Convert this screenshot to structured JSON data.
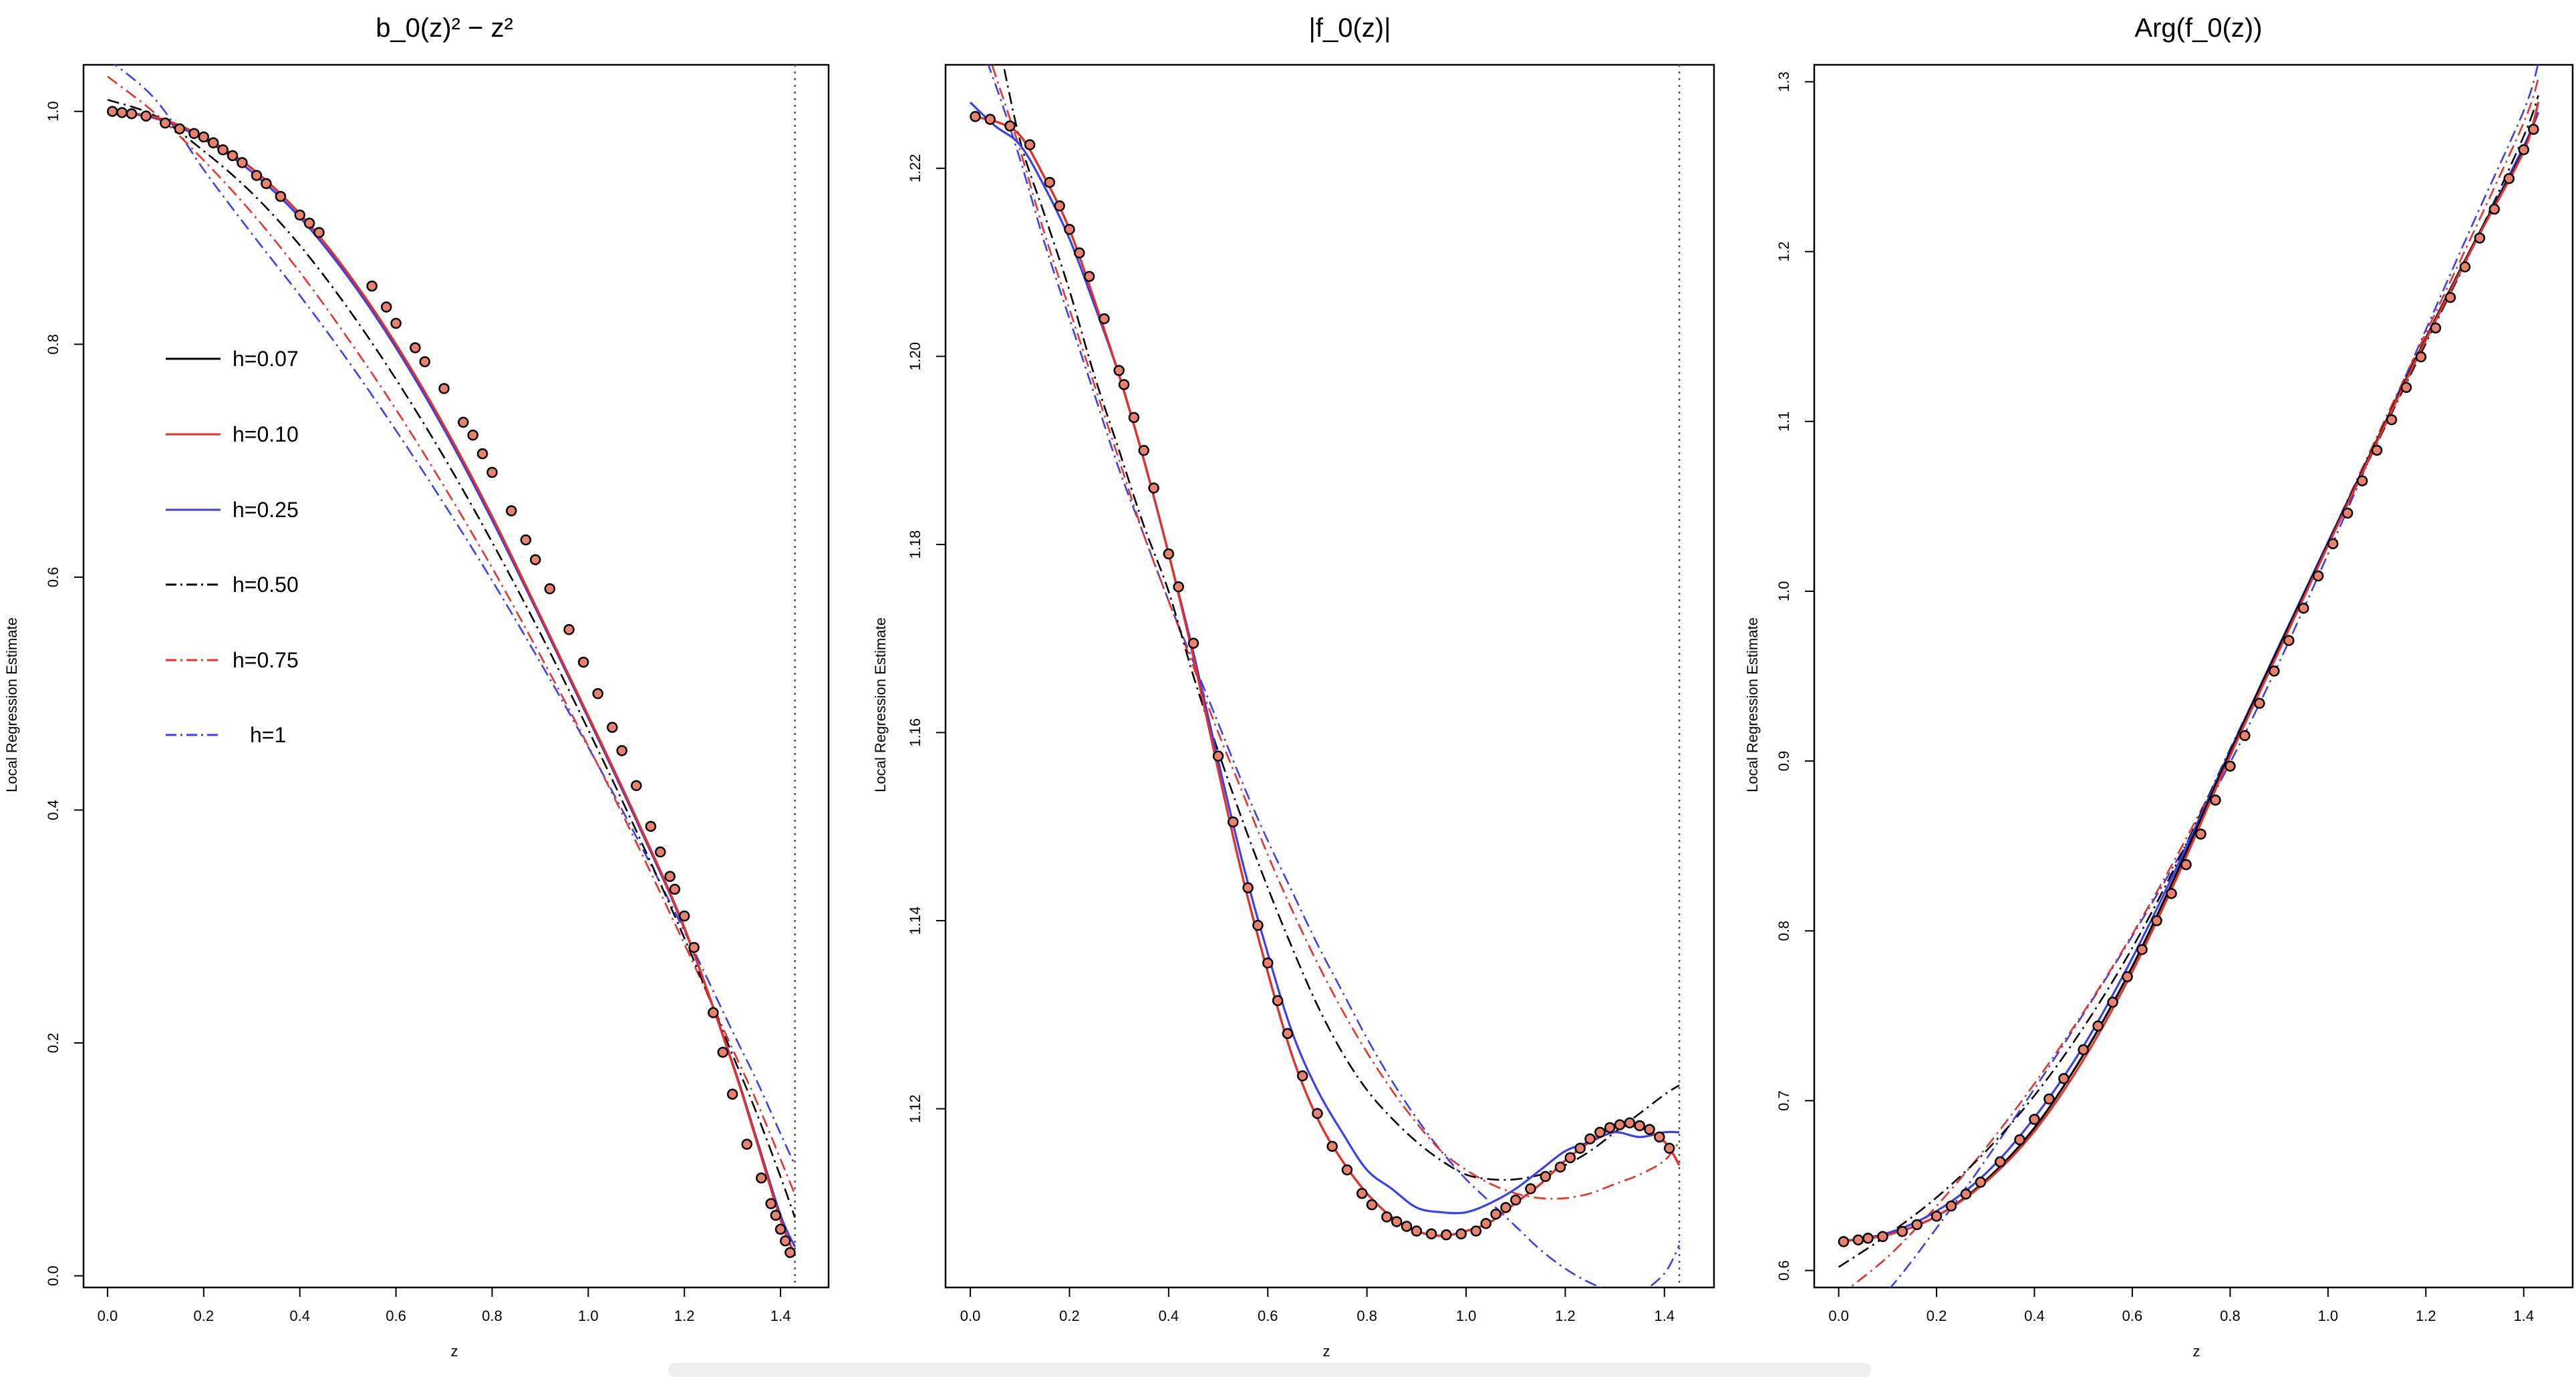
{
  "figure": {
    "y_axis_label": "Local Regression Estimate",
    "x_axis_label": "z"
  },
  "legend": [
    {
      "label": "h=0.07",
      "color": "#000000",
      "dash": "solid"
    },
    {
      "label": "h=0.10",
      "color": "#e8312a",
      "dash": "solid"
    },
    {
      "label": "h=0.25",
      "color": "#3b3ff0",
      "dash": "solid"
    },
    {
      "label": "h=0.50",
      "color": "#000000",
      "dash": "dashdot"
    },
    {
      "label": "h=0.75",
      "color": "#e8312a",
      "dash": "dashdot"
    },
    {
      "label": "h=1",
      "color": "#3b3ff0",
      "dash": "dashdot"
    }
  ],
  "chart_data": [
    {
      "type": "line",
      "title": "b_0(z)² − z²",
      "xlabel": "z",
      "ylabel": "Local Regression Estimate",
      "xlim": [
        -0.05,
        1.5
      ],
      "ylim": [
        -0.01,
        1.04
      ],
      "x_ticks": [
        0.0,
        0.2,
        0.4,
        0.6,
        0.8,
        1.0,
        1.2,
        1.4
      ],
      "x_tick_labels": [
        "0.0",
        "0.2",
        "0.4",
        "0.6",
        "0.8",
        "1.0",
        "1.2",
        "1.4"
      ],
      "y_ticks": [
        0.0,
        0.2,
        0.4,
        0.6,
        0.8,
        1.0
      ],
      "y_tick_labels": [
        "0.0",
        "0.2",
        "0.4",
        "0.6",
        "0.8",
        "1.0"
      ],
      "vline": 1.43,
      "grid": false,
      "legend_position": "left",
      "x": [
        0.0,
        0.1,
        0.2,
        0.3,
        0.4,
        0.5,
        0.6,
        0.7,
        0.8,
        0.9,
        1.0,
        1.1,
        1.2,
        1.3,
        1.35,
        1.4,
        1.43
      ],
      "series": [
        {
          "name": "h=0.07",
          "values": [
            1.0,
            0.995,
            0.978,
            0.951,
            0.912,
            0.861,
            0.8,
            0.73,
            0.652,
            0.567,
            0.481,
            0.393,
            0.299,
            0.182,
            0.116,
            0.048,
            0.018
          ]
        },
        {
          "name": "h=0.10",
          "values": [
            1.0,
            0.995,
            0.978,
            0.951,
            0.912,
            0.861,
            0.8,
            0.73,
            0.652,
            0.567,
            0.481,
            0.393,
            0.299,
            0.182,
            0.116,
            0.048,
            0.018
          ]
        },
        {
          "name": "h=0.25",
          "values": [
            1.0,
            0.994,
            0.976,
            0.948,
            0.909,
            0.858,
            0.797,
            0.727,
            0.649,
            0.565,
            0.479,
            0.391,
            0.298,
            0.183,
            0.118,
            0.052,
            0.025
          ]
        },
        {
          "name": "h=0.50",
          "values": [
            1.01,
            0.996,
            0.966,
            0.93,
            0.885,
            0.831,
            0.77,
            0.703,
            0.63,
            0.552,
            0.469,
            0.382,
            0.29,
            0.19,
            0.14,
            0.085,
            0.05
          ]
        },
        {
          "name": "h=0.75",
          "values": [
            1.03,
            0.998,
            0.958,
            0.913,
            0.862,
            0.805,
            0.744,
            0.678,
            0.608,
            0.533,
            0.455,
            0.372,
            0.285,
            0.195,
            0.15,
            0.1,
            0.07
          ]
        },
        {
          "name": "h=1",
          "values": [
            1.045,
            1.01,
            0.95,
            0.895,
            0.842,
            0.786,
            0.726,
            0.663,
            0.597,
            0.527,
            0.454,
            0.377,
            0.296,
            0.21,
            0.168,
            0.122,
            0.095
          ]
        }
      ],
      "points": {
        "x": [
          0.01,
          0.03,
          0.05,
          0.08,
          0.12,
          0.15,
          0.18,
          0.2,
          0.22,
          0.24,
          0.26,
          0.28,
          0.31,
          0.33,
          0.36,
          0.4,
          0.42,
          0.44,
          0.55,
          0.58,
          0.6,
          0.64,
          0.66,
          0.7,
          0.74,
          0.76,
          0.78,
          0.8,
          0.84,
          0.87,
          0.89,
          0.92,
          0.96,
          0.99,
          1.02,
          1.05,
          1.07,
          1.1,
          1.13,
          1.15,
          1.17,
          1.18,
          1.2,
          1.22,
          1.26,
          1.28,
          1.3,
          1.33,
          1.36,
          1.38,
          1.39,
          1.4,
          1.41,
          1.42
        ],
        "y": [
          1.0,
          0.999,
          0.998,
          0.996,
          0.99,
          0.985,
          0.981,
          0.978,
          0.973,
          0.967,
          0.962,
          0.956,
          0.945,
          0.938,
          0.927,
          0.911,
          0.904,
          0.896,
          0.85,
          0.832,
          0.818,
          0.797,
          0.785,
          0.762,
          0.733,
          0.722,
          0.706,
          0.69,
          0.657,
          0.632,
          0.615,
          0.59,
          0.555,
          0.527,
          0.5,
          0.471,
          0.451,
          0.421,
          0.386,
          0.364,
          0.343,
          0.332,
          0.309,
          0.282,
          0.226,
          0.192,
          0.156,
          0.113,
          0.084,
          0.062,
          0.052,
          0.04,
          0.03,
          0.02
        ]
      }
    },
    {
      "type": "line",
      "title": "|f_0(z)|",
      "xlabel": "z",
      "ylabel": "Local Regression Estimate",
      "xlim": [
        -0.05,
        1.5
      ],
      "ylim": [
        1.101,
        1.231
      ],
      "x_ticks": [
        0.0,
        0.2,
        0.4,
        0.6,
        0.8,
        1.0,
        1.2,
        1.4
      ],
      "x_tick_labels": [
        "0.0",
        "0.2",
        "0.4",
        "0.6",
        "0.8",
        "1.0",
        "1.2",
        "1.4"
      ],
      "y_ticks": [
        1.12,
        1.14,
        1.16,
        1.18,
        1.2,
        1.22
      ],
      "y_tick_labels": [
        "1.12",
        "1.14",
        "1.16",
        "1.18",
        "1.20",
        "1.22"
      ],
      "vline": 1.43,
      "grid": false,
      "x": [
        0.0,
        0.05,
        0.1,
        0.15,
        0.2,
        0.25,
        0.3,
        0.35,
        0.4,
        0.45,
        0.5,
        0.55,
        0.6,
        0.65,
        0.7,
        0.75,
        0.8,
        0.85,
        0.9,
        0.95,
        1.0,
        1.05,
        1.1,
        1.15,
        1.2,
        1.25,
        1.3,
        1.35,
        1.4,
        1.43
      ],
      "series": [
        {
          "name": "h=0.07",
          "values": [
            1.2255,
            1.225,
            1.2235,
            1.219,
            1.2135,
            1.206,
            1.198,
            1.189,
            1.179,
            1.168,
            1.156,
            1.1445,
            1.1345,
            1.1255,
            1.119,
            1.1145,
            1.111,
            1.1085,
            1.107,
            1.1065,
            1.107,
            1.108,
            1.11,
            1.112,
            1.1145,
            1.1165,
            1.118,
            1.118,
            1.1165,
            1.114
          ]
        },
        {
          "name": "h=0.10",
          "values": [
            1.2255,
            1.225,
            1.2235,
            1.219,
            1.2135,
            1.206,
            1.198,
            1.189,
            1.179,
            1.168,
            1.156,
            1.1445,
            1.1345,
            1.1255,
            1.119,
            1.1145,
            1.111,
            1.1085,
            1.107,
            1.1065,
            1.107,
            1.108,
            1.11,
            1.112,
            1.1145,
            1.1165,
            1.118,
            1.118,
            1.1165,
            1.114
          ]
        },
        {
          "name": "h=0.25",
          "values": [
            1.227,
            1.2245,
            1.2225,
            1.218,
            1.2125,
            1.2055,
            1.198,
            1.189,
            1.179,
            1.1685,
            1.157,
            1.146,
            1.1365,
            1.128,
            1.122,
            1.1175,
            1.1135,
            1.1115,
            1.1095,
            1.109,
            1.109,
            1.11,
            1.1115,
            1.1135,
            1.1155,
            1.1165,
            1.1175,
            1.117,
            1.1175,
            1.1175
          ]
        },
        {
          "name": "h=0.50",
          "values": [
            1.245,
            1.235,
            1.223,
            1.215,
            1.207,
            1.198,
            1.19,
            1.182,
            1.175,
            1.166,
            1.158,
            1.1505,
            1.1435,
            1.137,
            1.131,
            1.126,
            1.122,
            1.119,
            1.1165,
            1.1145,
            1.113,
            1.1125,
            1.1125,
            1.113,
            1.114,
            1.1155,
            1.1175,
            1.1195,
            1.1215,
            1.1225
          ]
        },
        {
          "name": "h=0.75",
          "values": [
            1.238,
            1.23,
            1.222,
            1.213,
            1.205,
            1.197,
            1.189,
            1.181,
            1.174,
            1.167,
            1.16,
            1.1535,
            1.147,
            1.141,
            1.1355,
            1.1305,
            1.126,
            1.122,
            1.1185,
            1.1155,
            1.1135,
            1.112,
            1.111,
            1.1105,
            1.1105,
            1.111,
            1.112,
            1.113,
            1.1145,
            1.1165
          ]
        },
        {
          "name": "h=1",
          "values": [
            1.236,
            1.229,
            1.221,
            1.212,
            1.204,
            1.196,
            1.188,
            1.181,
            1.174,
            1.1675,
            1.161,
            1.1545,
            1.1485,
            1.143,
            1.1375,
            1.1325,
            1.1275,
            1.123,
            1.119,
            1.1155,
            1.1125,
            1.11,
            1.1075,
            1.105,
            1.103,
            1.1015,
            1.1005,
            1.1005,
            1.1025,
            1.1055
          ]
        }
      ],
      "points": {
        "x": [
          0.01,
          0.04,
          0.08,
          0.12,
          0.16,
          0.18,
          0.2,
          0.22,
          0.24,
          0.27,
          0.3,
          0.31,
          0.33,
          0.35,
          0.37,
          0.4,
          0.42,
          0.45,
          0.5,
          0.53,
          0.56,
          0.58,
          0.6,
          0.62,
          0.64,
          0.67,
          0.7,
          0.73,
          0.76,
          0.79,
          0.81,
          0.84,
          0.86,
          0.88,
          0.9,
          0.93,
          0.96,
          0.99,
          1.02,
          1.04,
          1.06,
          1.08,
          1.1,
          1.13,
          1.16,
          1.19,
          1.21,
          1.23,
          1.25,
          1.27,
          1.29,
          1.31,
          1.33,
          1.35,
          1.37,
          1.39,
          1.41
        ],
        "y": [
          1.2255,
          1.2252,
          1.2245,
          1.2225,
          1.2185,
          1.216,
          1.2135,
          1.211,
          1.2085,
          1.204,
          1.1985,
          1.197,
          1.1935,
          1.19,
          1.186,
          1.179,
          1.1755,
          1.1695,
          1.1575,
          1.1505,
          1.1435,
          1.1395,
          1.1355,
          1.1315,
          1.128,
          1.1235,
          1.1195,
          1.116,
          1.1135,
          1.111,
          1.1098,
          1.1085,
          1.108,
          1.1075,
          1.107,
          1.1067,
          1.1066,
          1.1067,
          1.107,
          1.1078,
          1.1088,
          1.1095,
          1.1103,
          1.1115,
          1.1128,
          1.1138,
          1.1148,
          1.1158,
          1.1168,
          1.1175,
          1.118,
          1.1183,
          1.1185,
          1.1182,
          1.1178,
          1.117,
          1.1158
        ]
      }
    },
    {
      "type": "line",
      "title": "Arg(f_0(z))",
      "xlabel": "z",
      "ylabel": "Local Regression Estimate",
      "xlim": [
        -0.05,
        1.5
      ],
      "ylim": [
        0.59,
        1.31
      ],
      "x_ticks": [
        0.0,
        0.2,
        0.4,
        0.6,
        0.8,
        1.0,
        1.2,
        1.4
      ],
      "x_tick_labels": [
        "0.0",
        "0.2",
        "0.4",
        "0.6",
        "0.8",
        "1.0",
        "1.2",
        "1.4"
      ],
      "y_ticks": [
        0.6,
        0.7,
        0.8,
        0.9,
        1.0,
        1.1,
        1.2,
        1.3
      ],
      "y_tick_labels": [
        "0.6",
        "0.7",
        "0.8",
        "0.9",
        "1.0",
        "1.1",
        "1.2",
        "1.3"
      ],
      "grid": false,
      "x": [
        0.0,
        0.1,
        0.2,
        0.3,
        0.4,
        0.5,
        0.6,
        0.7,
        0.8,
        0.9,
        1.0,
        1.1,
        1.2,
        1.3,
        1.4,
        1.43
      ],
      "series": [
        {
          "name": "h=0.07",
          "values": [
            0.617,
            0.621,
            0.632,
            0.653,
            0.684,
            0.727,
            0.779,
            0.84,
            0.905,
            0.967,
            1.028,
            1.089,
            1.149,
            1.206,
            1.26,
            1.288
          ]
        },
        {
          "name": "h=0.10",
          "values": [
            0.617,
            0.621,
            0.632,
            0.652,
            0.682,
            0.724,
            0.776,
            0.837,
            0.903,
            0.965,
            1.027,
            1.088,
            1.148,
            1.205,
            1.259,
            1.288
          ]
        },
        {
          "name": "h=0.25",
          "values": [
            0.617,
            0.622,
            0.635,
            0.657,
            0.69,
            0.732,
            0.784,
            0.843,
            0.906,
            0.968,
            1.029,
            1.089,
            1.148,
            1.205,
            1.262,
            1.282
          ]
        },
        {
          "name": "h=0.50",
          "values": [
            0.602,
            0.621,
            0.643,
            0.67,
            0.703,
            0.743,
            0.79,
            0.845,
            0.907,
            0.967,
            1.027,
            1.087,
            1.146,
            1.205,
            1.268,
            1.292
          ]
        },
        {
          "name": "h=0.75",
          "values": [
            0.585,
            0.608,
            0.638,
            0.672,
            0.71,
            0.752,
            0.798,
            0.849,
            0.905,
            0.966,
            1.029,
            1.091,
            1.152,
            1.213,
            1.276,
            1.302
          ]
        },
        {
          "name": "h=1",
          "values": [
            0.56,
            0.588,
            0.625,
            0.665,
            0.707,
            0.751,
            0.797,
            0.846,
            0.899,
            0.958,
            1.022,
            1.088,
            1.154,
            1.219,
            1.283,
            1.311
          ]
        }
      ],
      "points": {
        "x": [
          0.01,
          0.04,
          0.06,
          0.09,
          0.13,
          0.16,
          0.2,
          0.23,
          0.26,
          0.29,
          0.33,
          0.37,
          0.4,
          0.43,
          0.46,
          0.5,
          0.53,
          0.56,
          0.59,
          0.62,
          0.65,
          0.68,
          0.71,
          0.74,
          0.77,
          0.8,
          0.83,
          0.86,
          0.89,
          0.92,
          0.95,
          0.98,
          1.01,
          1.04,
          1.07,
          1.1,
          1.13,
          1.16,
          1.19,
          1.22,
          1.25,
          1.28,
          1.31,
          1.34,
          1.37,
          1.4,
          1.42
        ],
        "y": [
          0.617,
          0.618,
          0.619,
          0.62,
          0.623,
          0.627,
          0.632,
          0.638,
          0.645,
          0.652,
          0.664,
          0.677,
          0.689,
          0.701,
          0.713,
          0.73,
          0.744,
          0.758,
          0.773,
          0.789,
          0.806,
          0.822,
          0.839,
          0.857,
          0.877,
          0.897,
          0.915,
          0.934,
          0.953,
          0.971,
          0.99,
          1.009,
          1.028,
          1.046,
          1.065,
          1.083,
          1.101,
          1.12,
          1.138,
          1.155,
          1.173,
          1.191,
          1.208,
          1.225,
          1.243,
          1.26,
          1.272
        ]
      }
    }
  ]
}
